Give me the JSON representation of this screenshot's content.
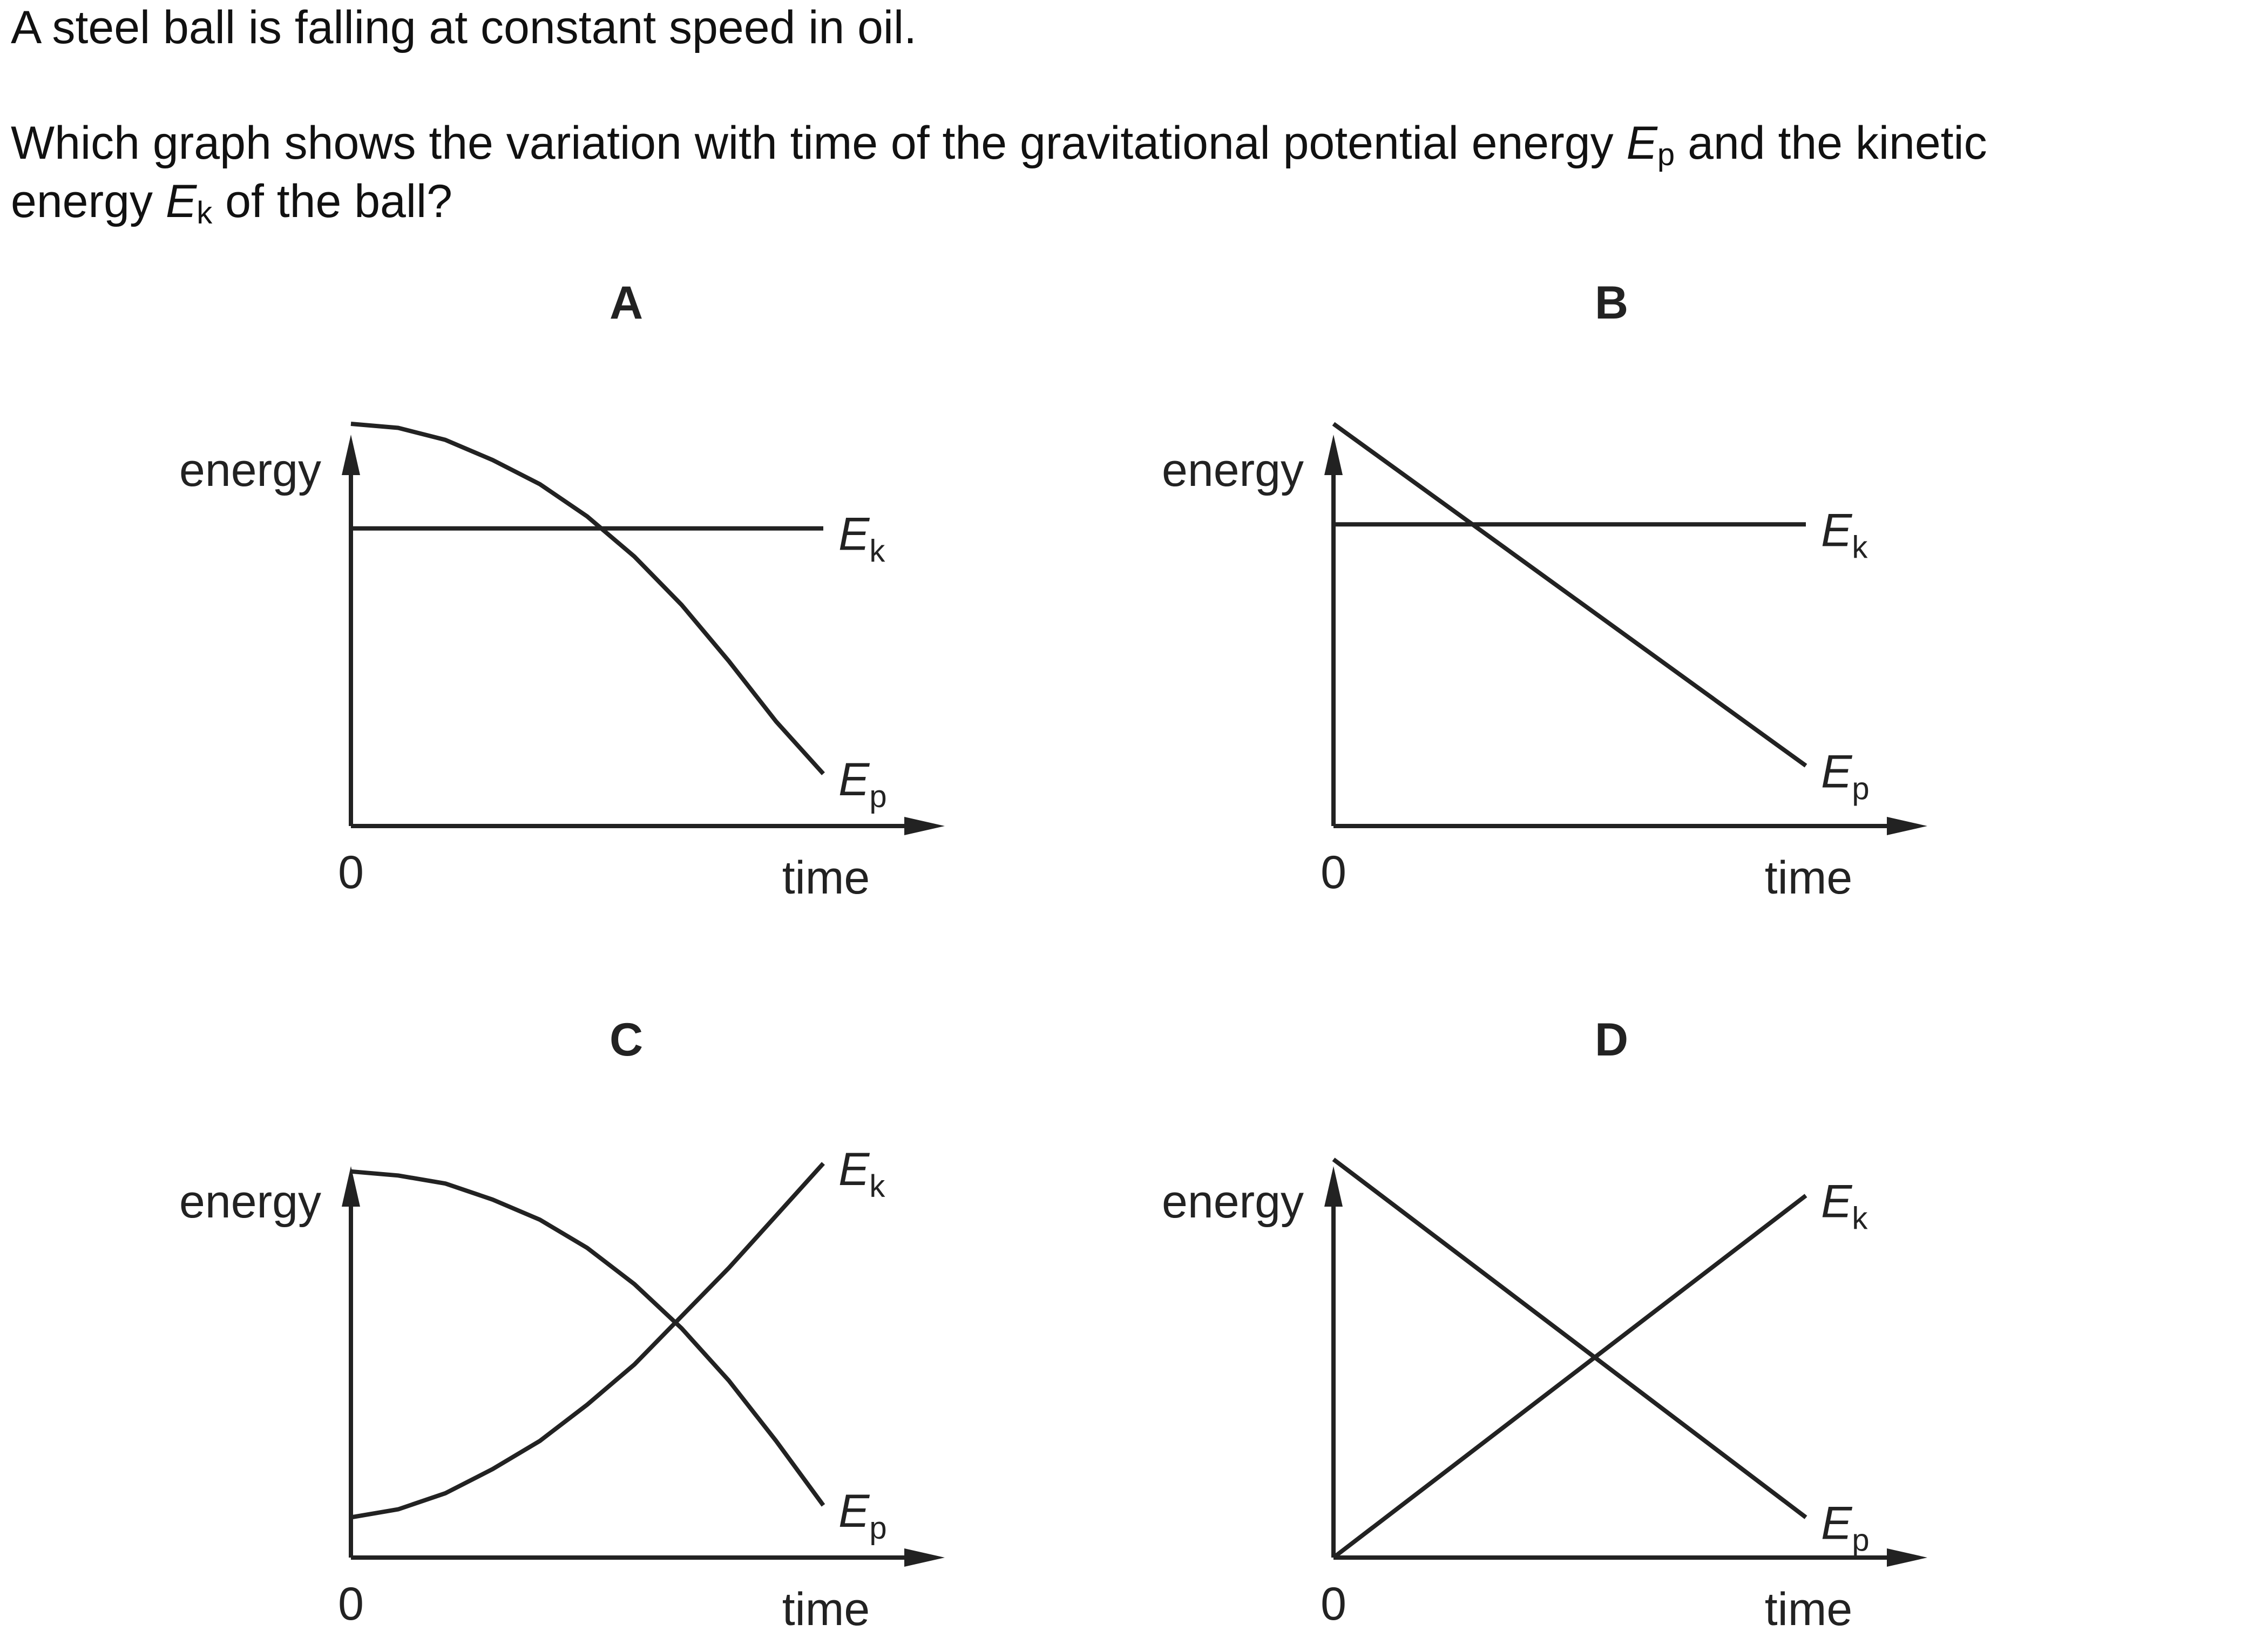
{
  "question": {
    "stem": "A steel ball is falling at constant speed in oil.",
    "line2_before": "Which graph shows the variation with time of the gravitational potential energy",
    "ep_symbol": "E",
    "ep_sub": "p",
    "line2_after": "and the kinetic",
    "line3_before": "energy",
    "ek_symbol": "E",
    "ek_sub": "k",
    "line3_after": "of the ball?"
  },
  "chart_data": [
    {
      "option": "A",
      "type": "line",
      "ylabel": "energy",
      "xlabel": "time",
      "origin_label": "0",
      "xlim": [
        0,
        10
      ],
      "ylim": [
        0,
        10
      ],
      "series": [
        {
          "name": "Ek",
          "x": [
            0,
            10
          ],
          "y": [
            7.4,
            7.4
          ]
        },
        {
          "name": "Ep",
          "x": [
            0,
            1,
            2,
            3,
            4,
            5,
            6,
            7,
            8,
            9,
            10
          ],
          "y": [
            10.0,
            9.9,
            9.6,
            9.1,
            8.5,
            7.7,
            6.7,
            5.5,
            4.1,
            2.6,
            1.3
          ]
        }
      ]
    },
    {
      "option": "B",
      "type": "line",
      "ylabel": "energy",
      "xlabel": "time",
      "origin_label": "0",
      "xlim": [
        0,
        10
      ],
      "ylim": [
        0,
        10
      ],
      "series": [
        {
          "name": "Ek",
          "x": [
            0,
            10
          ],
          "y": [
            7.5,
            7.5
          ]
        },
        {
          "name": "Ep",
          "x": [
            0,
            10
          ],
          "y": [
            10.0,
            1.5
          ]
        }
      ]
    },
    {
      "option": "C",
      "type": "line",
      "ylabel": "energy",
      "xlabel": "time",
      "origin_label": "0",
      "xlim": [
        0,
        10
      ],
      "ylim": [
        0,
        10
      ],
      "series": [
        {
          "name": "Ek",
          "x": [
            0,
            1,
            2,
            3,
            4,
            5,
            6,
            7,
            8,
            9,
            10
          ],
          "y": [
            1.0,
            1.2,
            1.6,
            2.2,
            2.9,
            3.8,
            4.8,
            6.0,
            7.2,
            8.5,
            9.8
          ]
        },
        {
          "name": "Ep",
          "x": [
            0,
            1,
            2,
            3,
            4,
            5,
            6,
            7,
            8,
            9,
            10
          ],
          "y": [
            9.6,
            9.5,
            9.3,
            8.9,
            8.4,
            7.7,
            6.8,
            5.7,
            4.4,
            2.9,
            1.3
          ]
        }
      ]
    },
    {
      "option": "D",
      "type": "line",
      "ylabel": "energy",
      "xlabel": "time",
      "origin_label": "0",
      "xlim": [
        0,
        10
      ],
      "ylim": [
        0,
        10
      ],
      "series": [
        {
          "name": "Ek",
          "x": [
            0,
            10
          ],
          "y": [
            0.0,
            9.0
          ]
        },
        {
          "name": "Ep",
          "x": [
            0,
            10
          ],
          "y": [
            9.9,
            1.0
          ]
        }
      ]
    }
  ]
}
